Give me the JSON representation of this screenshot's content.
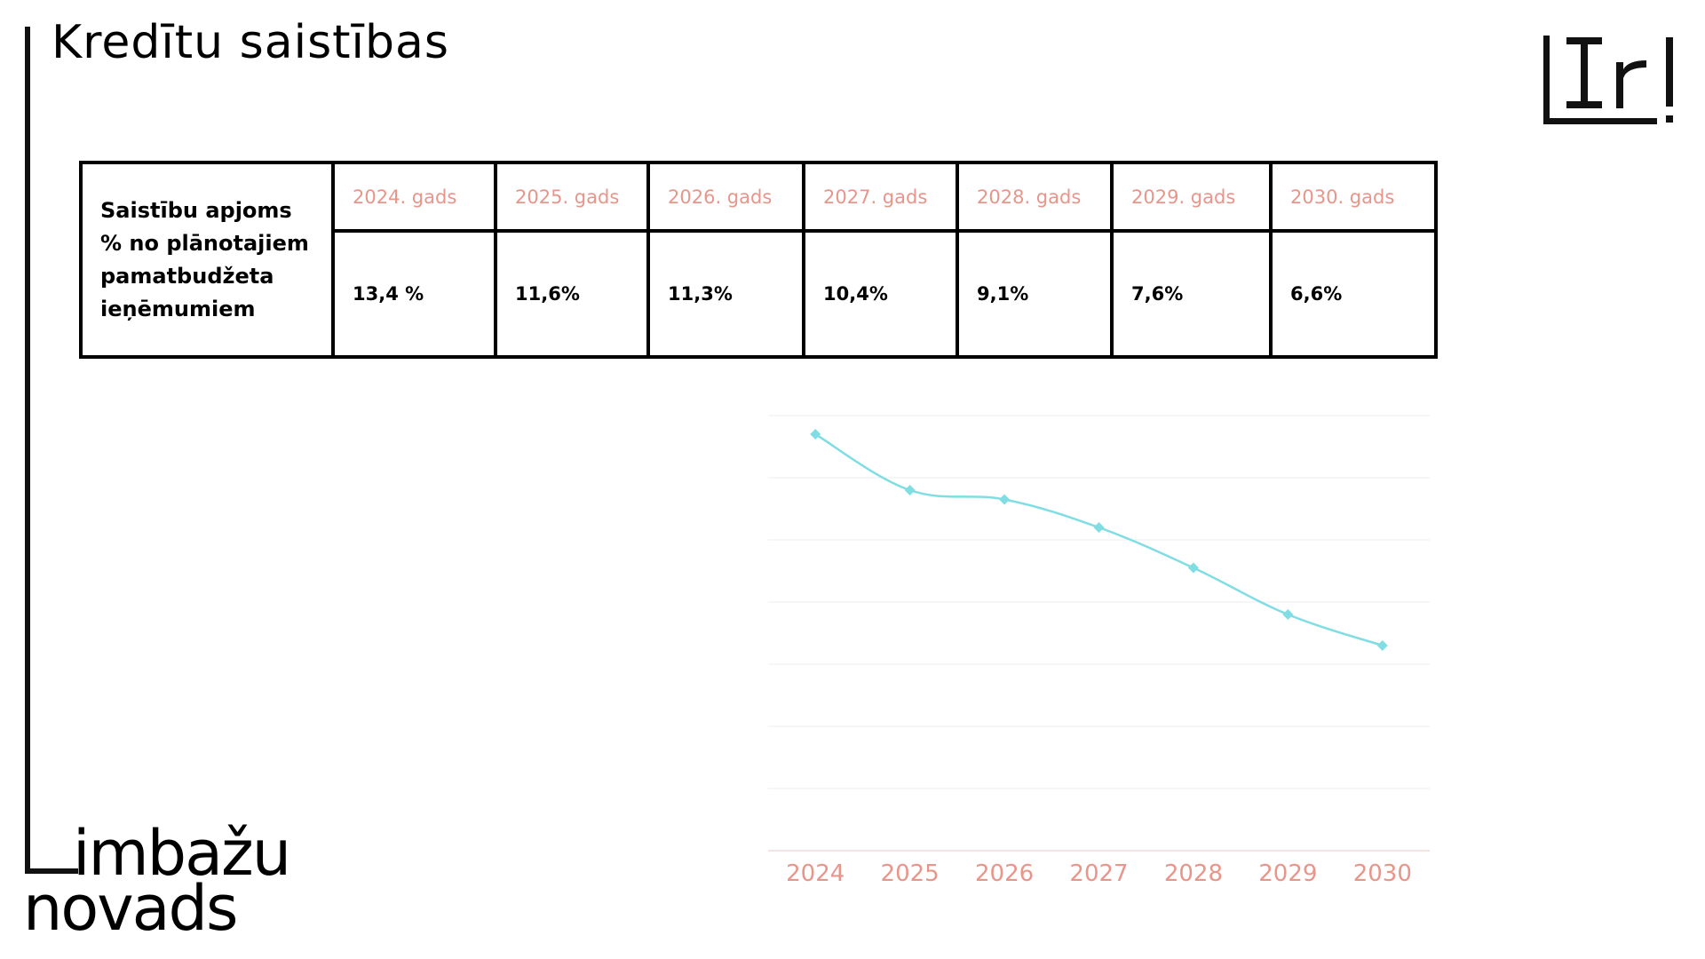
{
  "title": "Kredītu saistības",
  "logo_icon": "ir-logo-icon",
  "brand": {
    "line1": "imbažu",
    "line2": "novads"
  },
  "table": {
    "row_header": "Saistību apjoms % no plānotajiem pamatbudžeta ieņēmumiem",
    "columns": [
      {
        "label": "2024. gads",
        "value": "13,4 %"
      },
      {
        "label": "2025. gads",
        "value": "11,6%"
      },
      {
        "label": "2026. gads",
        "value": "11,3%"
      },
      {
        "label": "2027. gads",
        "value": "10,4%"
      },
      {
        "label": "2028. gads",
        "value": "9,1%"
      },
      {
        "label": "2029. gads",
        "value": "7,6%"
      },
      {
        "label": "2030. gads",
        "value": "6,6%"
      }
    ]
  },
  "colors": {
    "accent": "#e8958a",
    "line": "#7fdde3",
    "text": "#000000",
    "grid": "#eeeeee"
  },
  "chart_data": {
    "type": "line",
    "categories": [
      "2024",
      "2025",
      "2026",
      "2027",
      "2028",
      "2029",
      "2030"
    ],
    "series": [
      {
        "values": [
          13.4,
          11.6,
          11.3,
          10.4,
          9.1,
          7.6,
          6.6
        ]
      }
    ],
    "ylim": [
      0,
      14
    ],
    "grid": true,
    "legend": "none",
    "title": "",
    "xlabel": "",
    "ylabel": ""
  }
}
